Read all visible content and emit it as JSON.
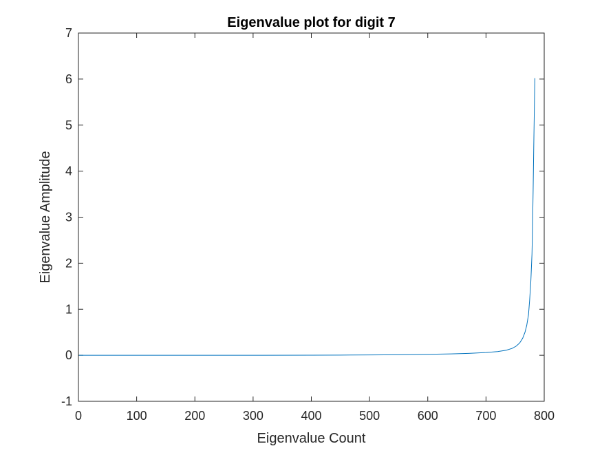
{
  "chart_data": {
    "type": "line",
    "title": "Eigenvalue plot for digit 7",
    "xlabel": "Eigenvalue Count",
    "ylabel": "Eigenvalue Amplitude",
    "xlim": [
      0,
      800
    ],
    "ylim": [
      -1,
      7
    ],
    "x_ticks": [
      "0",
      "100",
      "200",
      "300",
      "400",
      "500",
      "600",
      "700",
      "800"
    ],
    "y_ticks": [
      "-1",
      "0",
      "1",
      "2",
      "3",
      "4",
      "5",
      "6",
      "7"
    ],
    "grid": false,
    "line_color": "#0072BD",
    "series": [
      {
        "x": [
          1,
          100,
          200,
          300,
          400,
          450,
          500,
          550,
          600,
          640,
          670,
          700,
          720,
          735,
          745,
          752,
          758,
          763,
          767,
          770,
          773,
          775,
          777,
          779,
          780,
          781,
          782,
          783,
          784
        ],
        "values": [
          0,
          0,
          0,
          0,
          0.002,
          0.004,
          0.007,
          0.012,
          0.02,
          0.03,
          0.042,
          0.06,
          0.08,
          0.11,
          0.15,
          0.2,
          0.27,
          0.37,
          0.5,
          0.65,
          0.88,
          1.2,
          1.6,
          2.2,
          2.8,
          3.6,
          4.5,
          5.3,
          6.02
        ]
      }
    ]
  }
}
